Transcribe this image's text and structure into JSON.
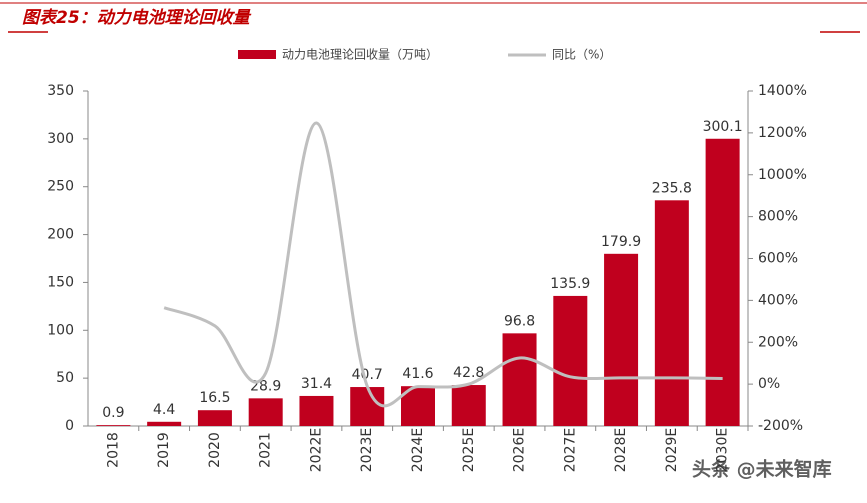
{
  "chart_data": {
    "type": "bar-line",
    "title": "图表25：动力电池理论回收量",
    "categories": [
      "2018",
      "2019",
      "2020",
      "2021",
      "2022E",
      "2023E",
      "2024E",
      "2025E",
      "2026E",
      "2027E",
      "2028E",
      "2029E",
      "2030E"
    ],
    "series": [
      {
        "name": "动力电池理论回收量（万吨）",
        "color": "#c0001e",
        "type": "bar",
        "values": [
          0.9,
          4.4,
          16.5,
          28.9,
          31.4,
          40.7,
          41.6,
          42.8,
          96.8,
          135.9,
          179.9,
          235.8,
          300.1
        ]
      },
      {
        "name": "同比（%）",
        "color": "#bfbfbf",
        "type": "line",
        "axis": "y2",
        "values": [
          null,
          365,
          278,
          53,
          1247,
          -10,
          -12,
          0,
          125,
          35,
          30,
          30,
          27
        ]
      }
    ],
    "ylim": [
      0,
      350
    ],
    "yticks": [
      0,
      50,
      100,
      150,
      200,
      250,
      300,
      350
    ],
    "y2lim": [
      -200,
      1400
    ],
    "y2ticks": [
      {
        "value": -200,
        "label": "-200%"
      },
      {
        "value": 0,
        "label": "0%"
      },
      {
        "value": 200,
        "label": "200%"
      },
      {
        "value": 400,
        "label": "400%"
      },
      {
        "value": 600,
        "label": "600%"
      },
      {
        "value": 800,
        "label": "800%"
      },
      {
        "value": 1000,
        "label": "1000%"
      },
      {
        "value": 1200,
        "label": "1200%"
      },
      {
        "value": 1400,
        "label": "1400%"
      }
    ],
    "watermark": "头条 @未来智库"
  }
}
